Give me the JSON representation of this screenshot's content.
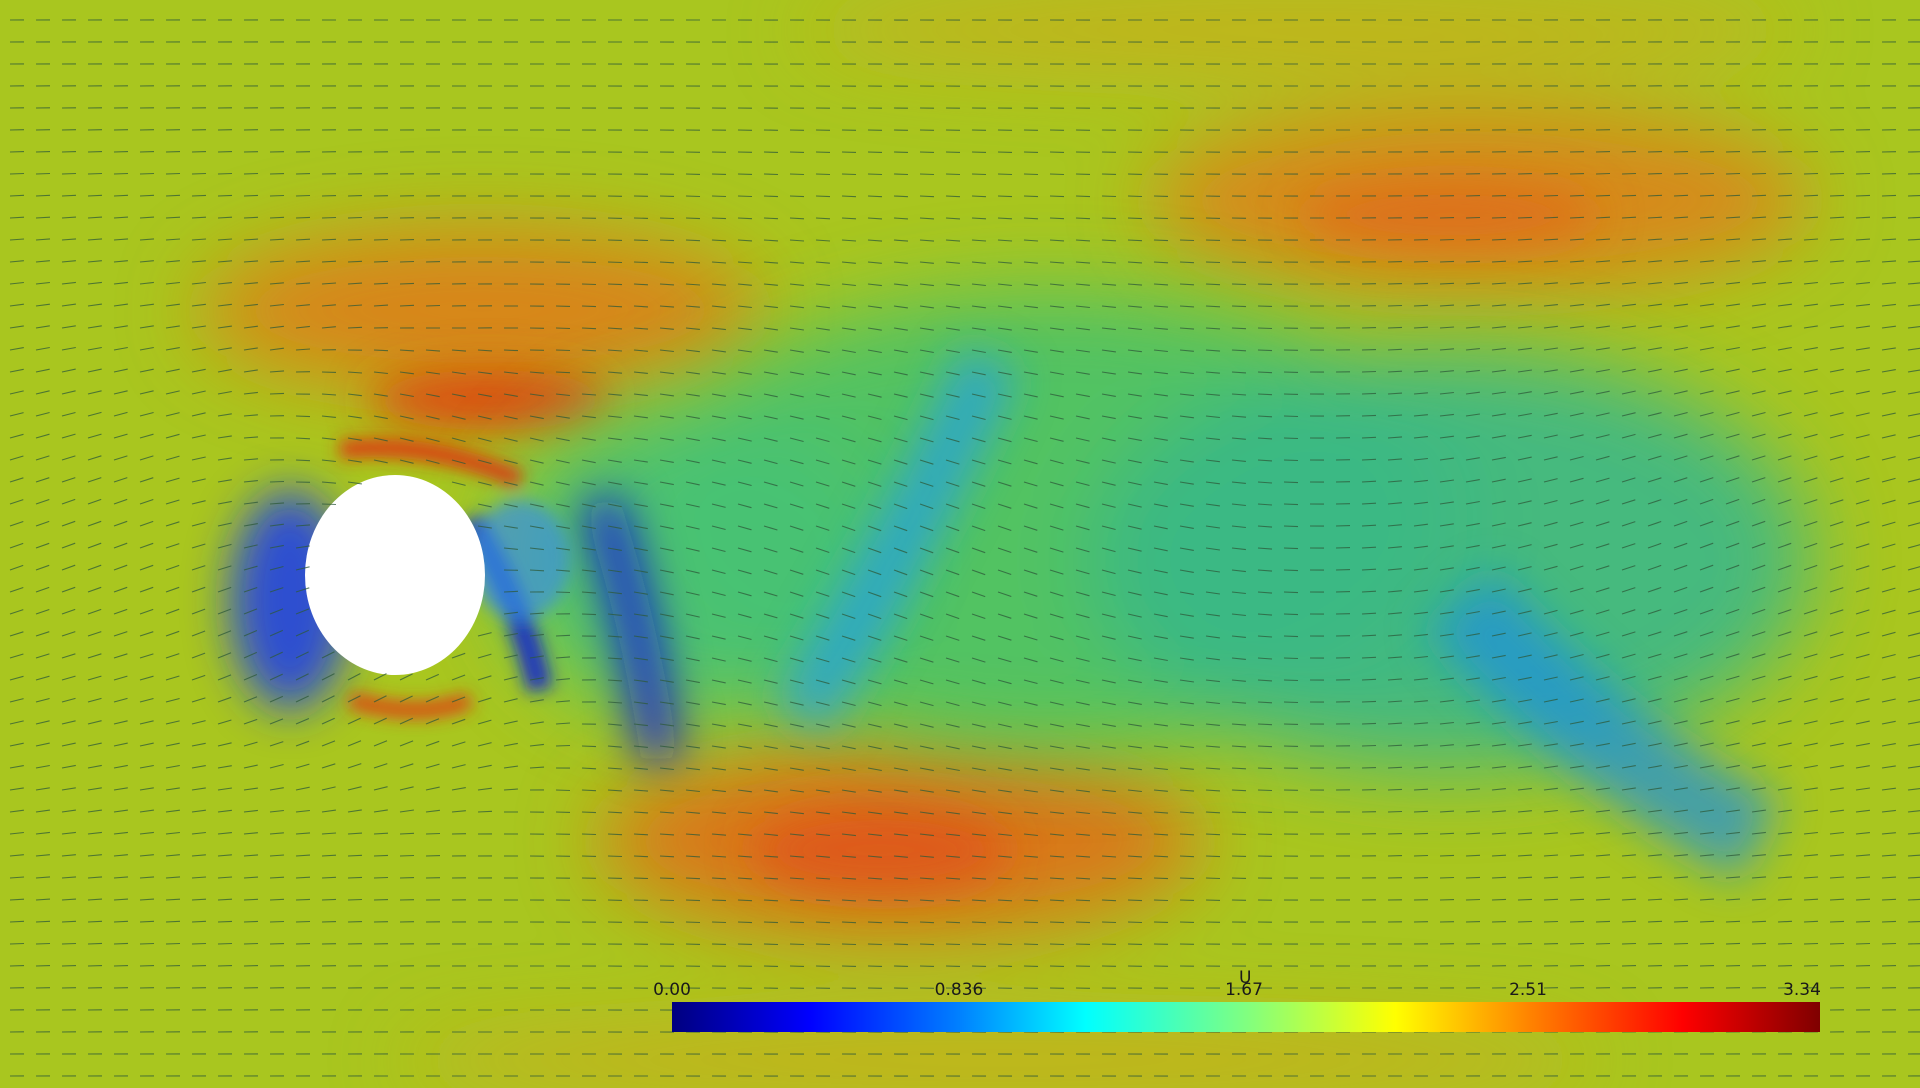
{
  "scene": {
    "description_type": "velocity-field-visualization",
    "background_color": "#a8c81e",
    "obstacle_color": "#ffffff"
  },
  "colorbar": {
    "title": "U",
    "ticks": [
      "0.00",
      "0.836",
      "1.67",
      "2.51",
      "3.34"
    ],
    "colormap": [
      "#00007f",
      "#0000ff",
      "#0080ff",
      "#00ffff",
      "#80ff80",
      "#ffff00",
      "#ff8000",
      "#ff0000",
      "#7f0000"
    ]
  }
}
